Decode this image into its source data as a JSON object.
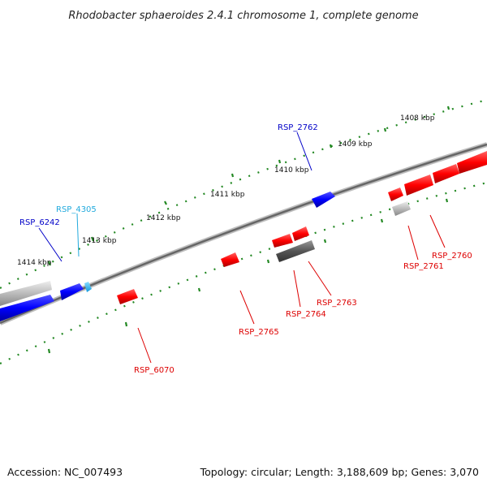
{
  "title": "Rhodobacter sphaeroides 2.4.1 chromosome 1, complete genome",
  "accession": "Accession: NC_007493",
  "summary": "Topology: circular; Length: 3,188,609 bp; Genes: 3,070",
  "tick_labels": [
    "1408 kbp",
    "1409 kbp",
    "1410 kbp",
    "1411 kbp",
    "1412 kbp",
    "1413 kbp",
    "1414 kbp"
  ],
  "gene_labels": [
    {
      "text": "RSP_2762",
      "color": "#0000c8"
    },
    {
      "text": "RSP_4305",
      "color": "#22aadd"
    },
    {
      "text": "RSP_6242",
      "color": "#0000c8"
    },
    {
      "text": "RSP_2760",
      "color": "#dd0000"
    },
    {
      "text": "RSP_2761",
      "color": "#dd0000"
    },
    {
      "text": "RSP_2763",
      "color": "#dd0000"
    },
    {
      "text": "RSP_2764",
      "color": "#dd0000"
    },
    {
      "text": "RSP_2765",
      "color": "#dd0000"
    },
    {
      "text": "RSP_6070",
      "color": "#dd0000"
    }
  ],
  "colors": {
    "forward_gene": "#0000ff",
    "reverse_gene": "#ff0000",
    "rna_gene": "#22aaee",
    "pseudo_gene": "#bbbbbb",
    "dark_gene": "#555555",
    "backbone": "#888888",
    "tick": "#228822"
  }
}
